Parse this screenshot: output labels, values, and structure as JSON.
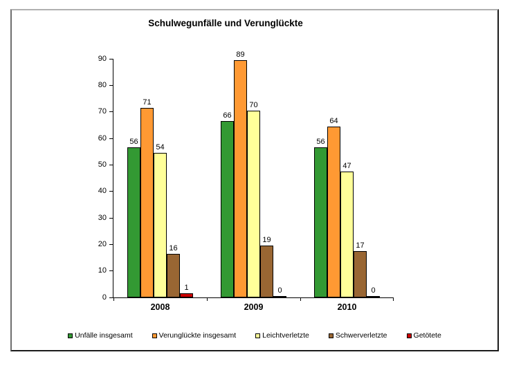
{
  "chart_data": {
    "type": "bar",
    "title": "Schulwegunfälle und Verunglückte",
    "xlabel": "",
    "ylabel": "",
    "categories": [
      "2008",
      "2009",
      "2010"
    ],
    "series": [
      {
        "name": "Unfälle insgesamt",
        "color": "#339933",
        "values": [
          56,
          66,
          56
        ]
      },
      {
        "name": "Verunglückte insgesamt",
        "color": "#FF9933",
        "values": [
          71,
          89,
          64
        ]
      },
      {
        "name": "Leichtverletzte",
        "color": "#FFFF99",
        "values": [
          54,
          70,
          47
        ]
      },
      {
        "name": "Schwerverletzte",
        "color": "#996633",
        "values": [
          16,
          19,
          17
        ]
      },
      {
        "name": "Getötete",
        "color": "#CC0000",
        "values": [
          1,
          0,
          0
        ]
      }
    ],
    "ylim": [
      0,
      90
    ],
    "y_ticks": [
      "0",
      "10",
      "20",
      "30",
      "40",
      "50",
      "60",
      "70",
      "80",
      "90"
    ],
    "grid": false,
    "legend_position": "bottom",
    "value_labels_shown": true
  }
}
